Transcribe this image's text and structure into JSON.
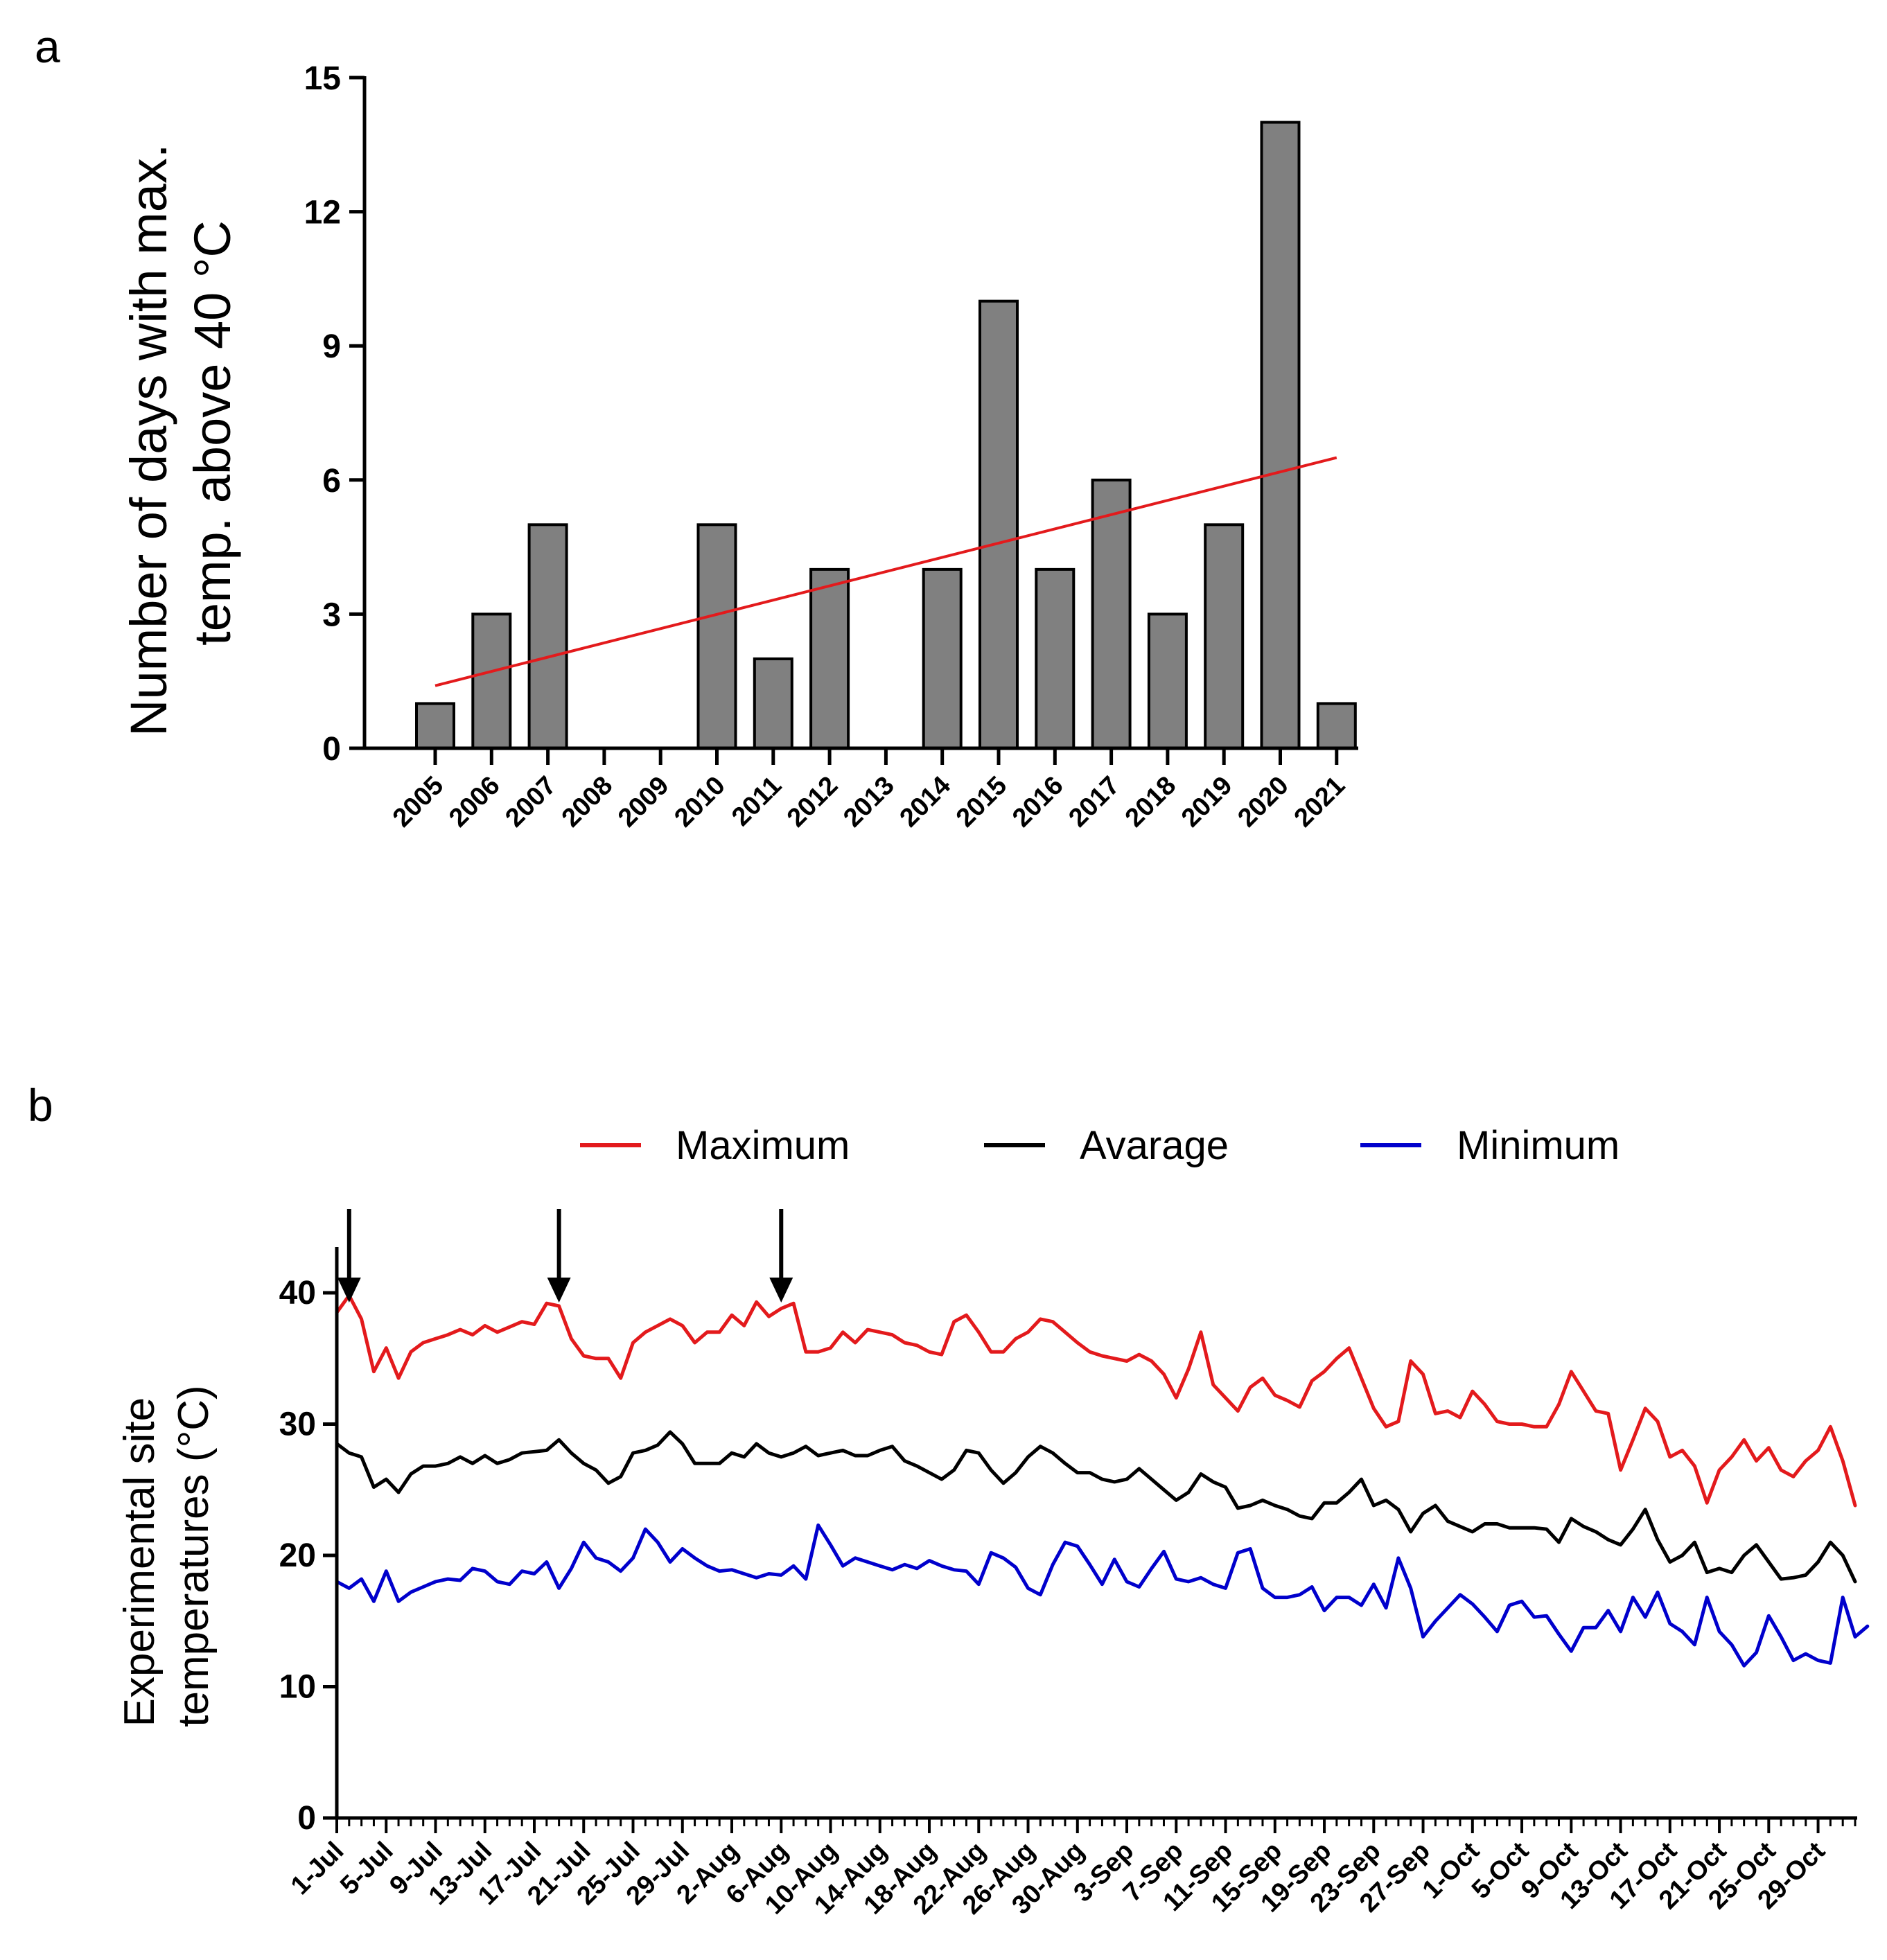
{
  "chart_data": [
    {
      "panel": "a",
      "type": "bar",
      "ylabel": [
        "Number of days with max.",
        "temp. above 40 °C"
      ],
      "xlabel": "",
      "ylim": [
        0,
        15
      ],
      "yticks": [
        0,
        3,
        6,
        9,
        12,
        15
      ],
      "categories": [
        "2005",
        "2006",
        "2007",
        "2008",
        "2009",
        "2010",
        "2011",
        "2012",
        "2013",
        "2014",
        "2015",
        "2016",
        "2017",
        "2018",
        "2019",
        "2020",
        "2021"
      ],
      "values": [
        1,
        3,
        5,
        0,
        0,
        5,
        2,
        4,
        0,
        4,
        10,
        4,
        6,
        3,
        5,
        14,
        1
      ],
      "trendline": {
        "start": 1.4,
        "end": 6.5
      },
      "colors": {
        "bar": "#808080",
        "bar_edge": "#000000",
        "trend": "#e31a1c"
      }
    },
    {
      "panel": "b",
      "type": "line",
      "ylabel": [
        "Experimental site",
        "temperatures (°C)"
      ],
      "xlabel": "",
      "ylim": [
        0,
        45
      ],
      "yticks": [
        0,
        10,
        20,
        30,
        40
      ],
      "xtick_labels": [
        "1-Jul",
        "5-Jul",
        "9-Jul",
        "13-Jul",
        "17-Jul",
        "21-Jul",
        "25-Jul",
        "29-Jul",
        "2-Aug",
        "6-Aug",
        "10-Aug",
        "14-Aug",
        "18-Aug",
        "22-Aug",
        "26-Aug",
        "30-Aug",
        "3-Sep",
        "7-Sep",
        "11-Sep",
        "15-Sep",
        "19-Sep",
        "23-Sep",
        "27-Sep",
        "1-Oct",
        "5-Oct",
        "9-Oct",
        "13-Oct",
        "17-Oct",
        "21-Oct",
        "25-Oct",
        "29-Oct"
      ],
      "legend": [
        "Maximum",
        "Avarage",
        "Minimum"
      ],
      "arrows_at_day": [
        1,
        18,
        36
      ],
      "series": [
        {
          "name": "Maximum",
          "color": "#e31a1c",
          "values": [
            38.5,
            39.8,
            38,
            34,
            35.8,
            33.5,
            35.5,
            36.2,
            36.5,
            36.8,
            37.2,
            36.8,
            37.5,
            37,
            37.4,
            37.8,
            37.6,
            39.2,
            39,
            36.5,
            35.2,
            35,
            35,
            33.5,
            36.2,
            37,
            37.5,
            38,
            37.5,
            36.2,
            37,
            37,
            38.3,
            37.5,
            39.3,
            38.2,
            38.8,
            39.2,
            35.5,
            35.5,
            35.8,
            37,
            36.2,
            37.2,
            37,
            36.8,
            36.2,
            36,
            35.5,
            35.3,
            37.8,
            38.3,
            37,
            35.5,
            35.5,
            36.5,
            37,
            38,
            37.8,
            37,
            36.2,
            35.5,
            35.2,
            35,
            34.8,
            35.3,
            34.8,
            33.8,
            32,
            34.2,
            37,
            33,
            32,
            31,
            32.8,
            33.5,
            32.2,
            31.8,
            31.3,
            33.3,
            34,
            35,
            35.8,
            33.5,
            31.2,
            29.8,
            30.2,
            34.8,
            33.8,
            30.8,
            31,
            30.5,
            32.5,
            31.5,
            30.2,
            30,
            30,
            29.8,
            29.8,
            31.5,
            34,
            32.5,
            31,
            30.8,
            26.5,
            28.8,
            31.2,
            30.2,
            27.5,
            28,
            26.8,
            24,
            26.5,
            27.5,
            28.8,
            27.2,
            28.2,
            26.5,
            26,
            27.2,
            28,
            29.8,
            27.2,
            23.8
          ]
        },
        {
          "name": "Avarage",
          "color": "#000000",
          "values": [
            28.5,
            27.8,
            27.5,
            25.2,
            25.8,
            24.8,
            26.2,
            26.8,
            26.8,
            27,
            27.5,
            27,
            27.6,
            27,
            27.3,
            27.8,
            27.9,
            28,
            28.8,
            27.8,
            27,
            26.5,
            25.5,
            26,
            27.8,
            28,
            28.4,
            29.4,
            28.5,
            27,
            27,
            27,
            27.8,
            27.5,
            28.5,
            27.8,
            27.5,
            27.8,
            28.3,
            27.6,
            27.8,
            28,
            27.6,
            27.6,
            28,
            28.3,
            27.2,
            26.8,
            26.3,
            25.8,
            26.5,
            28,
            27.8,
            26.5,
            25.5,
            26.3,
            27.5,
            28.3,
            27.8,
            27,
            26.3,
            26.3,
            25.8,
            25.6,
            25.8,
            26.6,
            25.8,
            25,
            24.2,
            24.8,
            26.2,
            25.6,
            25.2,
            23.6,
            23.8,
            24.2,
            23.8,
            23.5,
            23,
            22.8,
            24,
            24,
            24.8,
            25.8,
            23.8,
            24.2,
            23.5,
            21.8,
            23.2,
            23.8,
            22.6,
            22.2,
            21.8,
            22.4,
            22.4,
            22.1,
            22.1,
            22.1,
            22,
            21,
            22.8,
            22.2,
            21.8,
            21.2,
            20.8,
            22,
            23.5,
            21.2,
            19.5,
            20,
            21,
            18.7,
            19,
            18.7,
            20,
            20.8,
            19.5,
            18.2,
            18.3,
            18.5,
            19.5,
            21,
            20,
            18
          ]
        },
        {
          "name": "Minimum",
          "color": "#0000cc",
          "values": [
            18,
            17.5,
            18.2,
            16.5,
            18.8,
            16.5,
            17.2,
            17.6,
            18,
            18.2,
            18.1,
            19,
            18.8,
            18,
            17.8,
            18.8,
            18.6,
            19.5,
            17.5,
            19,
            21,
            19.8,
            19.5,
            18.8,
            19.8,
            22,
            21,
            19.5,
            20.5,
            19.8,
            19.2,
            18.8,
            18.9,
            18.6,
            18.3,
            18.6,
            18.5,
            19.2,
            18.2,
            22.3,
            20.8,
            19.2,
            19.8,
            19.5,
            19.2,
            18.9,
            19.3,
            19,
            19.6,
            19.2,
            18.9,
            18.8,
            17.8,
            20.2,
            19.8,
            19.1,
            17.5,
            17,
            19.3,
            21,
            20.7,
            19.3,
            17.8,
            19.7,
            18,
            17.6,
            19,
            20.3,
            18.2,
            18,
            18.3,
            17.8,
            17.5,
            20.2,
            20.5,
            17.5,
            16.8,
            16.8,
            17,
            17.6,
            15.8,
            16.8,
            16.8,
            16.2,
            17.8,
            16,
            19.8,
            17.5,
            13.8,
            15,
            16,
            17,
            16.3,
            15.3,
            14.2,
            16.2,
            16.5,
            15.3,
            15.4,
            14,
            12.7,
            14.5,
            14.5,
            15.8,
            14.2,
            16.8,
            15.3,
            17.2,
            14.8,
            14.2,
            13.2,
            16.8,
            14.2,
            13.2,
            11.6,
            12.6,
            15.4,
            13.8,
            12,
            12.5,
            12,
            11.8,
            16.8,
            13.8,
            14.6
          ]
        }
      ]
    }
  ],
  "panels": {
    "a": "a",
    "b": "b"
  }
}
